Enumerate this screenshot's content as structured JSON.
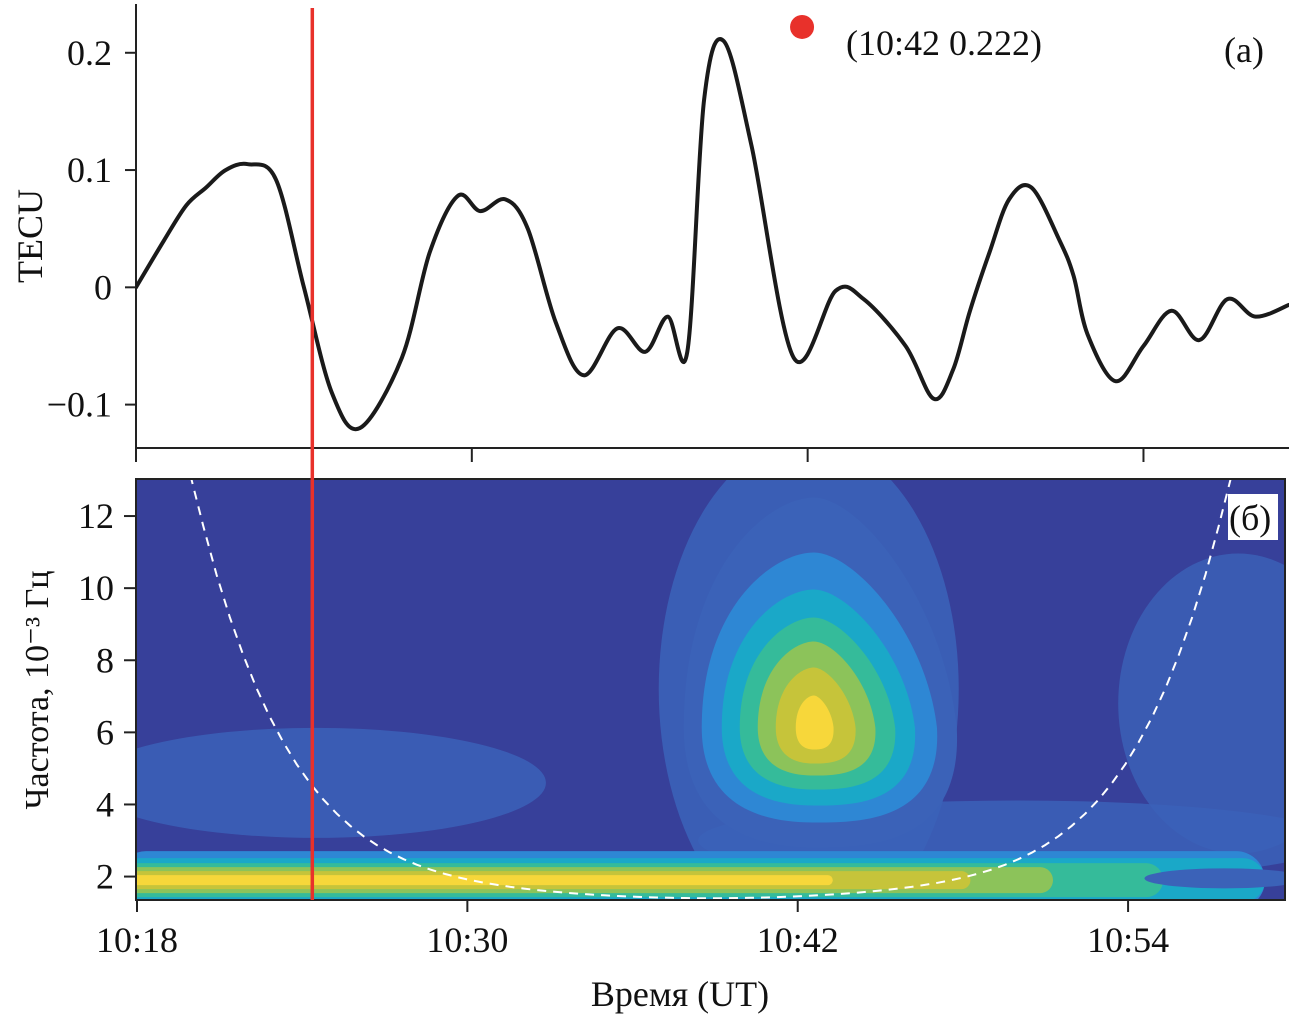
{
  "chart_data": [
    {
      "panel": "top",
      "type": "line",
      "panel_label": "(а)",
      "ylabel": "TECU",
      "yticks": [
        0.2,
        0.1,
        0,
        -0.1
      ],
      "ytick_labels": [
        "0.2",
        "0.1",
        "0",
        "−0.1"
      ],
      "ylim": [
        -0.137,
        0.245
      ],
      "xlim_minutes": [
        0,
        41.2
      ],
      "series": [
        {
          "name": "TEC",
          "color": "#1a1a1a",
          "x_minutes": [
            0,
            1.0,
            1.8,
            2.5,
            3.2,
            4.0,
            5.0,
            6.0,
            7.0,
            8.0,
            9.5,
            10.5,
            11.5,
            12.3,
            13.2,
            14.0,
            15.0,
            16.0,
            17.2,
            18.2,
            19.0,
            19.7,
            20.3,
            21.0,
            22.0,
            23.5,
            25.0,
            26.0,
            27.5,
            28.5,
            29.2,
            29.8,
            30.5,
            31.2,
            32.0,
            33.0,
            33.5,
            34.0,
            35.0,
            36.0,
            37.0,
            38.0,
            39.0,
            40.0,
            41.2
          ],
          "values": [
            0.0,
            0.04,
            0.07,
            0.085,
            0.1,
            0.105,
            0.092,
            0.0,
            -0.09,
            -0.12,
            -0.06,
            0.03,
            0.078,
            0.065,
            0.075,
            0.05,
            -0.03,
            -0.075,
            -0.035,
            -0.055,
            -0.025,
            -0.055,
            0.16,
            0.21,
            0.12,
            -0.06,
            -0.003,
            -0.01,
            -0.05,
            -0.095,
            -0.07,
            -0.02,
            0.03,
            0.075,
            0.085,
            0.04,
            0.01,
            -0.04,
            -0.08,
            -0.05,
            -0.02,
            -0.045,
            -0.01,
            -0.025,
            -0.015
          ]
        }
      ],
      "peak_marker": {
        "x_minutes": 23.8,
        "value": 0.222,
        "color": "#e8312b",
        "annotation": "(10:42 0.222)"
      }
    },
    {
      "panel": "bottom",
      "type": "heatmap",
      "panel_label": "(б)",
      "ylabel": "Частота, 10⁻³ Гц",
      "yticks": [
        12,
        10,
        8,
        6,
        4,
        2
      ],
      "ytick_labels": [
        "12",
        "10",
        "8",
        "6",
        "4",
        "2"
      ],
      "ylim": [
        1.35,
        13.0
      ],
      "xlabel": "Время (UT)",
      "xticks_minutes": [
        0,
        12,
        24,
        36
      ],
      "xtick_labels": [
        "10:18",
        "10:30",
        "10:42",
        "10:54"
      ],
      "xlim_minutes": [
        0,
        41.7
      ],
      "colormap": [
        "#37409a",
        "#3b62b8",
        "#2e87d4",
        "#1aa8c8",
        "#35bb9a",
        "#8cc35a",
        "#c6c43a",
        "#f7d73a"
      ],
      "blobs": [
        {
          "name": "main-event",
          "center_minutes": 24.8,
          "center_freq": 6.3,
          "level": 7
        },
        {
          "name": "low-band",
          "freq": 1.9,
          "minutes_from": 0,
          "minutes_to": 41.7,
          "level": 7
        }
      ],
      "cone_of_influence": {
        "style": "dashed",
        "color": "#ffffff"
      }
    }
  ],
  "event_marker": {
    "x_minutes": 6.3,
    "color": "#e8312b",
    "label": "vertical event line"
  },
  "colors": {
    "line": "#1a1a1a",
    "accent": "#e8312b",
    "axis": "#222222"
  }
}
